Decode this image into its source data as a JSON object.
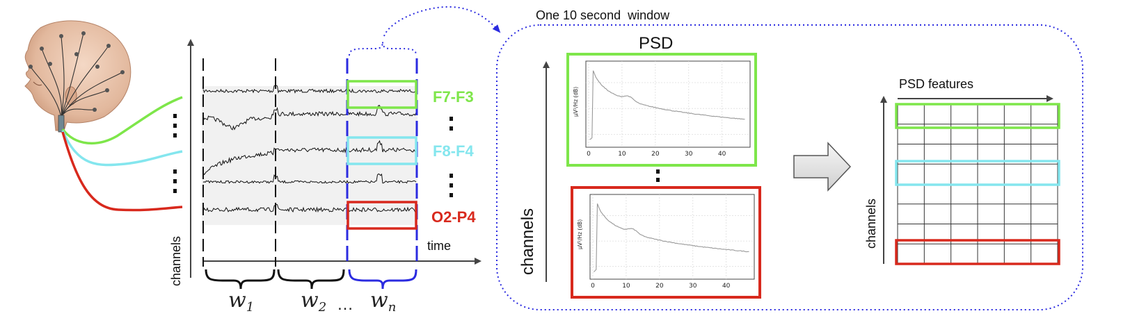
{
  "colors": {
    "green": "#7ee64a",
    "cyan": "#84e6ee",
    "red": "#d8291d",
    "blue": "#2b2be0",
    "black": "#111111",
    "psd_curve": "#999999",
    "band_bg": "#f1f1f1"
  },
  "head": {
    "icon": "eeg-head-with-electrodes-icon"
  },
  "signals": {
    "axis_label": "channels",
    "time_label": "time",
    "channels": [
      {
        "name": "F7-F3",
        "color": "#7ee64a"
      },
      {
        "name": "F8-F4",
        "color": "#84e6ee"
      },
      {
        "name": "O2-P4",
        "color": "#d8291d"
      }
    ],
    "window_labels": [
      "w",
      "w",
      "w"
    ],
    "window_subscripts": [
      "1",
      "2",
      "n"
    ],
    "ellipsis": "…"
  },
  "psd_panel": {
    "window_title": "One 10 second  window",
    "psd_title": "PSD",
    "axis_label": "channels",
    "plot_ylabel": "µV²/Hz (dB)",
    "x_ticks": [
      "0",
      "10",
      "20",
      "30",
      "40"
    ]
  },
  "features": {
    "title": "PSD features",
    "axis_label": "channels",
    "grid_rows": 8,
    "grid_cols": 6
  },
  "arrow": {
    "icon": "right-block-arrow-icon"
  }
}
